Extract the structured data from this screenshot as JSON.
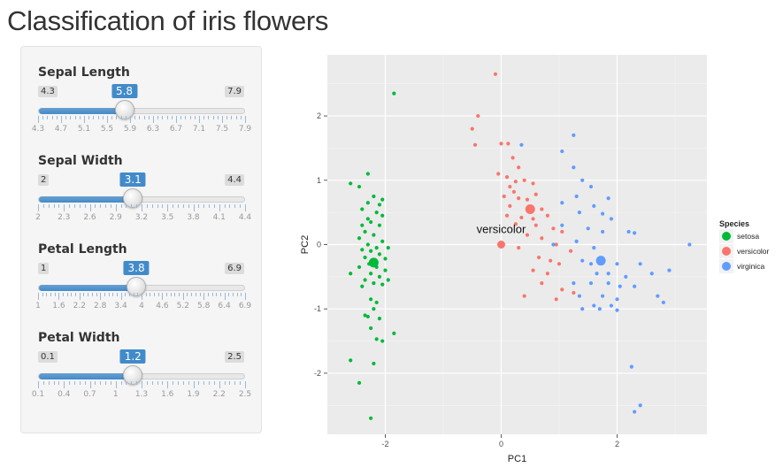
{
  "app": {
    "title": "Classification of iris flowers"
  },
  "sliders": [
    {
      "label": "Sepal Length",
      "min": 4.3,
      "max": 7.9,
      "value": 5.8,
      "min_label": "4.3",
      "max_label": "7.9",
      "value_label": "5.8",
      "ticks": [
        "4.3",
        "4.7",
        "5.1",
        "5.5",
        "5.9",
        "6.3",
        "6.7",
        "7.1",
        "7.5",
        "7.9"
      ]
    },
    {
      "label": "Sepal Width",
      "min": 2,
      "max": 4.4,
      "value": 3.1,
      "min_label": "2",
      "max_label": "4.4",
      "value_label": "3.1",
      "ticks": [
        "2",
        "2.3",
        "2.6",
        "2.9",
        "3.2",
        "3.5",
        "3.8",
        "4.1",
        "4.4"
      ]
    },
    {
      "label": "Petal Length",
      "min": 1,
      "max": 6.9,
      "value": 3.8,
      "min_label": "1",
      "max_label": "6.9",
      "value_label": "3.8",
      "ticks": [
        "1",
        "1.6",
        "2.2",
        "2.8",
        "3.4",
        "4",
        "4.6",
        "5.2",
        "5.8",
        "6.4",
        "6.9"
      ]
    },
    {
      "label": "Petal Width",
      "min": 0.1,
      "max": 2.5,
      "value": 1.2,
      "min_label": "0.1",
      "max_label": "2.5",
      "value_label": "1.2",
      "ticks": [
        "0.1",
        "0.4",
        "0.7",
        "1",
        "1.3",
        "1.6",
        "1.9",
        "2.2",
        "2.5"
      ]
    }
  ],
  "colors": {
    "setosa": "#00ba38",
    "versicolor": "#f8766d",
    "virginica": "#619cff",
    "panel": "#ebebeb",
    "accent": "#428bca"
  },
  "chart_data": {
    "type": "scatter",
    "xlabel": "PC1",
    "ylabel": "PC2",
    "xlim": [
      -3.0,
      3.55
    ],
    "ylim": [
      -2.95,
      2.95
    ],
    "x_ticks": [
      -2,
      0,
      2
    ],
    "y_ticks": [
      -2,
      -1,
      0,
      1,
      2
    ],
    "grid": true,
    "legend": {
      "title": "Species",
      "position": "right",
      "entries": [
        "setosa",
        "versicolor",
        "virginica"
      ]
    },
    "annotation": {
      "text": "versicolor",
      "x": 0.0,
      "y": 0.18
    },
    "query_point": {
      "x": 0.0,
      "y": 0.0,
      "class": "versicolor"
    },
    "centroids": [
      {
        "name": "setosa",
        "x": -2.2,
        "y": -0.28
      },
      {
        "name": "versicolor",
        "x": 0.5,
        "y": 0.55
      },
      {
        "name": "virginica",
        "x": 1.72,
        "y": -0.25
      }
    ],
    "series": [
      {
        "name": "setosa",
        "points": [
          [
            -1.85,
            2.35
          ],
          [
            -2.3,
            1.1
          ],
          [
            -2.6,
            0.95
          ],
          [
            -2.45,
            0.9
          ],
          [
            -2.2,
            0.75
          ],
          [
            -2.05,
            0.7
          ],
          [
            -2.3,
            0.65
          ],
          [
            -2.1,
            0.62
          ],
          [
            -2.4,
            0.55
          ],
          [
            -2.15,
            0.5
          ],
          [
            -2.3,
            0.4
          ],
          [
            -2.05,
            0.45
          ],
          [
            -2.25,
            0.35
          ],
          [
            -2.4,
            0.3
          ],
          [
            -2.1,
            0.3
          ],
          [
            -2.35,
            0.2
          ],
          [
            -2.2,
            0.15
          ],
          [
            -2.45,
            0.1
          ],
          [
            -2.05,
            0.05
          ],
          [
            -2.3,
            0.0
          ],
          [
            -2.15,
            -0.05
          ],
          [
            -2.4,
            -0.08
          ],
          [
            -1.95,
            -0.05
          ],
          [
            -2.25,
            -0.1
          ],
          [
            -2.1,
            -0.15
          ],
          [
            -2.35,
            -0.2
          ],
          [
            -2.0,
            -0.22
          ],
          [
            -2.28,
            -0.3
          ],
          [
            -2.15,
            -0.35
          ],
          [
            -2.0,
            -0.4
          ],
          [
            -2.45,
            -0.35
          ],
          [
            -2.25,
            -0.45
          ],
          [
            -2.1,
            -0.5
          ],
          [
            -2.35,
            -0.55
          ],
          [
            -1.95,
            -0.55
          ],
          [
            -2.6,
            -0.45
          ],
          [
            -2.2,
            -0.6
          ],
          [
            -2.05,
            -0.62
          ],
          [
            -2.4,
            -0.65
          ],
          [
            -2.25,
            -0.85
          ],
          [
            -2.15,
            -0.9
          ],
          [
            -2.2,
            -1.0
          ],
          [
            -2.35,
            -1.1
          ],
          [
            -2.3,
            -1.12
          ],
          [
            -2.1,
            -1.15
          ],
          [
            -2.25,
            -1.3
          ],
          [
            -2.15,
            -1.47
          ],
          [
            -2.05,
            -1.5
          ],
          [
            -1.85,
            -1.38
          ],
          [
            -2.6,
            -1.8
          ],
          [
            -2.2,
            -1.85
          ],
          [
            -2.45,
            -2.15
          ],
          [
            -2.25,
            -2.7
          ]
        ]
      },
      {
        "name": "versicolor",
        "points": [
          [
            -0.1,
            2.65
          ],
          [
            -0.4,
            2.0
          ],
          [
            -0.5,
            1.8
          ],
          [
            -0.45,
            1.55
          ],
          [
            0.0,
            1.57
          ],
          [
            0.12,
            1.57
          ],
          [
            0.2,
            1.35
          ],
          [
            0.3,
            1.2
          ],
          [
            -0.05,
            1.1
          ],
          [
            0.1,
            1.05
          ],
          [
            0.25,
            0.98
          ],
          [
            0.4,
            1.0
          ],
          [
            0.55,
            0.95
          ],
          [
            0.15,
            0.9
          ],
          [
            0.22,
            0.82
          ],
          [
            0.05,
            0.75
          ],
          [
            0.3,
            0.72
          ],
          [
            0.45,
            0.7
          ],
          [
            0.6,
            0.78
          ],
          [
            0.15,
            0.6
          ],
          [
            0.5,
            0.58
          ],
          [
            0.7,
            0.55
          ],
          [
            0.1,
            0.45
          ],
          [
            0.35,
            0.42
          ],
          [
            0.55,
            0.4
          ],
          [
            0.8,
            0.45
          ],
          [
            0.25,
            0.32
          ],
          [
            0.6,
            0.3
          ],
          [
            0.9,
            0.25
          ],
          [
            1.05,
            0.2
          ],
          [
            0.45,
            0.15
          ],
          [
            0.7,
            0.1
          ],
          [
            0.95,
            0.0
          ],
          [
            0.3,
            -0.05
          ],
          [
            1.2,
            -0.1
          ],
          [
            0.65,
            -0.2
          ],
          [
            0.85,
            -0.25
          ],
          [
            1.0,
            -0.3
          ],
          [
            0.55,
            -0.4
          ],
          [
            0.8,
            -0.45
          ],
          [
            0.7,
            -0.6
          ],
          [
            1.05,
            -0.7
          ],
          [
            0.4,
            -0.8
          ],
          [
            0.95,
            -0.85
          ],
          [
            1.25,
            -0.75
          ]
        ]
      },
      {
        "name": "virginica",
        "points": [
          [
            0.35,
            1.55
          ],
          [
            1.25,
            1.7
          ],
          [
            1.05,
            1.45
          ],
          [
            1.25,
            1.2
          ],
          [
            1.4,
            1.0
          ],
          [
            1.55,
            0.9
          ],
          [
            1.3,
            0.75
          ],
          [
            1.85,
            0.72
          ],
          [
            1.05,
            0.65
          ],
          [
            1.6,
            0.6
          ],
          [
            1.35,
            0.5
          ],
          [
            1.75,
            0.48
          ],
          [
            1.9,
            0.4
          ],
          [
            1.05,
            0.3
          ],
          [
            1.5,
            0.25
          ],
          [
            1.75,
            0.2
          ],
          [
            2.2,
            0.2
          ],
          [
            2.3,
            0.18
          ],
          [
            0.9,
            0.0
          ],
          [
            1.3,
            0.05
          ],
          [
            1.6,
            -0.05
          ],
          [
            1.4,
            -0.25
          ],
          [
            1.55,
            -0.3
          ],
          [
            2.0,
            -0.3
          ],
          [
            2.4,
            -0.3
          ],
          [
            1.65,
            -0.45
          ],
          [
            1.85,
            -0.45
          ],
          [
            2.15,
            -0.5
          ],
          [
            2.6,
            -0.45
          ],
          [
            2.9,
            -0.4
          ],
          [
            1.25,
            -0.6
          ],
          [
            1.55,
            -0.6
          ],
          [
            1.85,
            -0.6
          ],
          [
            2.05,
            -0.65
          ],
          [
            2.3,
            -0.65
          ],
          [
            1.35,
            -0.8
          ],
          [
            1.75,
            -0.8
          ],
          [
            2.0,
            -0.85
          ],
          [
            1.6,
            -0.95
          ],
          [
            1.9,
            -0.95
          ],
          [
            2.7,
            -0.8
          ],
          [
            2.8,
            -0.9
          ],
          [
            1.4,
            -1.0
          ],
          [
            1.7,
            -1.0
          ],
          [
            2.0,
            -1.02
          ],
          [
            3.25,
            0.0
          ],
          [
            2.25,
            -1.9
          ],
          [
            2.3,
            -2.6
          ],
          [
            2.4,
            -2.5
          ]
        ]
      }
    ]
  }
}
